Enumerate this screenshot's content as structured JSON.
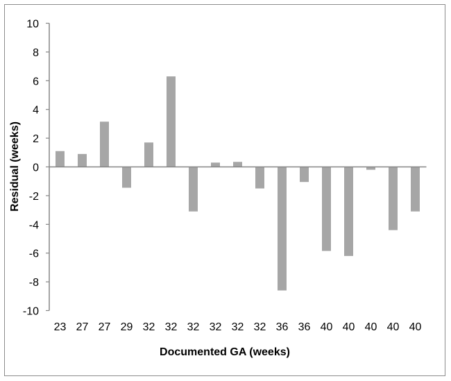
{
  "chart_data": {
    "type": "bar",
    "title": "",
    "xlabel": "Documented GA (weeks)",
    "ylabel": "Residual (weeks)",
    "ylim": [
      -10,
      10
    ],
    "yticks": [
      10,
      8,
      6,
      4,
      2,
      0,
      -2,
      -4,
      -6,
      -8,
      -10
    ],
    "grid": false,
    "legend": null,
    "bar_color": "#a6a6a6",
    "axis_color": "#868686",
    "categories": [
      "23",
      "27",
      "27",
      "29",
      "32",
      "32",
      "32",
      "32",
      "32",
      "32",
      "36",
      "36",
      "40",
      "40",
      "40",
      "40",
      "40"
    ],
    "values": [
      1.1,
      0.9,
      3.15,
      -1.45,
      1.7,
      6.3,
      -3.1,
      0.3,
      0.35,
      -1.5,
      -8.6,
      -1.05,
      -5.85,
      -6.2,
      -0.2,
      -4.4,
      -3.1
    ]
  }
}
